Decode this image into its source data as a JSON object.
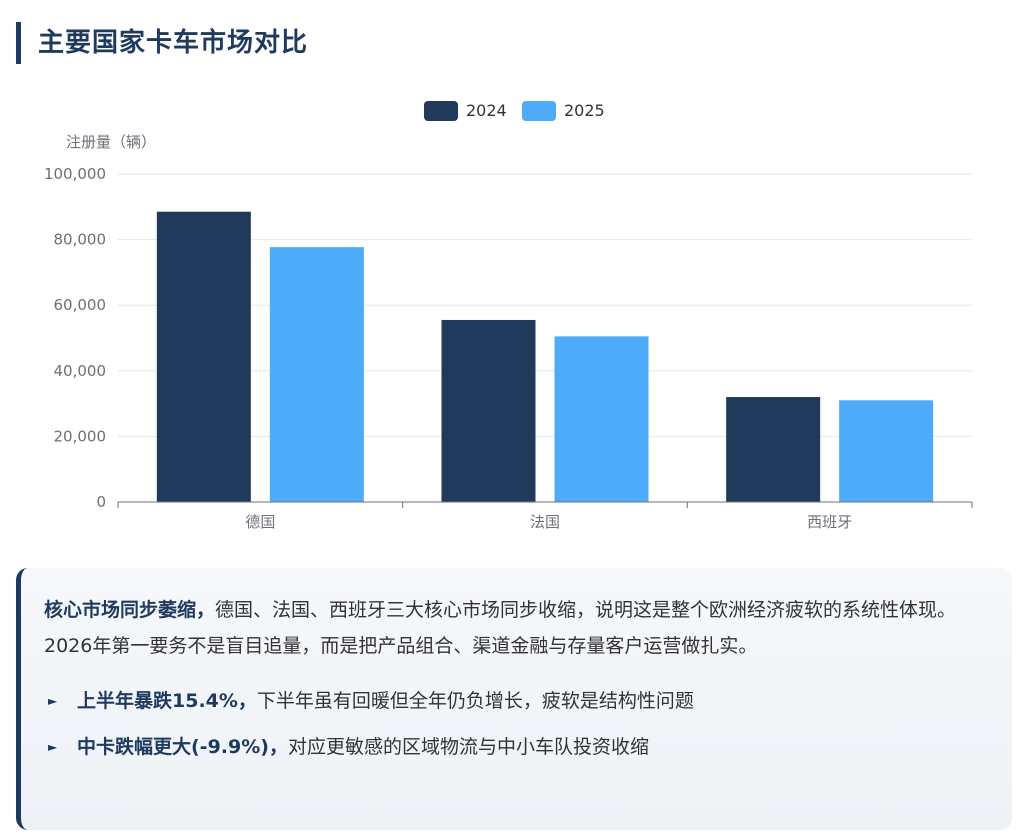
{
  "page": {
    "title": "主要国家卡车市场对比"
  },
  "colors": {
    "accent": "#1f3a5f",
    "series_2024": "#213a5c",
    "series_2025": "#4dabfa",
    "grid": "#e3e6ee",
    "axis_text": "#6e7079"
  },
  "chart_data": {
    "type": "bar",
    "title": "",
    "categories": [
      "德国",
      "法国",
      "西班牙"
    ],
    "series": [
      {
        "name": "2024",
        "values": [
          88500,
          55500,
          32000
        ]
      },
      {
        "name": "2025",
        "values": [
          77700,
          50500,
          31000
        ]
      }
    ],
    "ylabel": "注册量（辆）",
    "xlabel": "",
    "ylim": [
      0,
      100000
    ],
    "yticks": [
      0,
      20000,
      40000,
      60000,
      80000,
      100000
    ],
    "ytick_labels": [
      "0",
      "20,000",
      "40,000",
      "60,000",
      "80,000",
      "100,000"
    ],
    "grid": true,
    "legend": "top-center"
  },
  "insight": {
    "lead_bold": "核心市场同步萎缩，",
    "lead_text": "德国、法国、西班牙三大核心市场同步收缩，说明这是整个欧洲经济疲软的系统性体现。2026年第一要务不是盲目追量，而是把产品组合、渠道金融与存量客户运营做扎实。",
    "bullets": [
      {
        "icon": "triangle-right-icon",
        "bold": "上半年暴跌15.4%，",
        "text": "下半年虽有回暖但全年仍负增长，疲软是结构性问题"
      },
      {
        "icon": "triangle-right-icon",
        "bold": "中卡跌幅更大(-9.9%)，",
        "text": "对应更敏感的区域物流与中小车队投资收缩"
      }
    ]
  }
}
